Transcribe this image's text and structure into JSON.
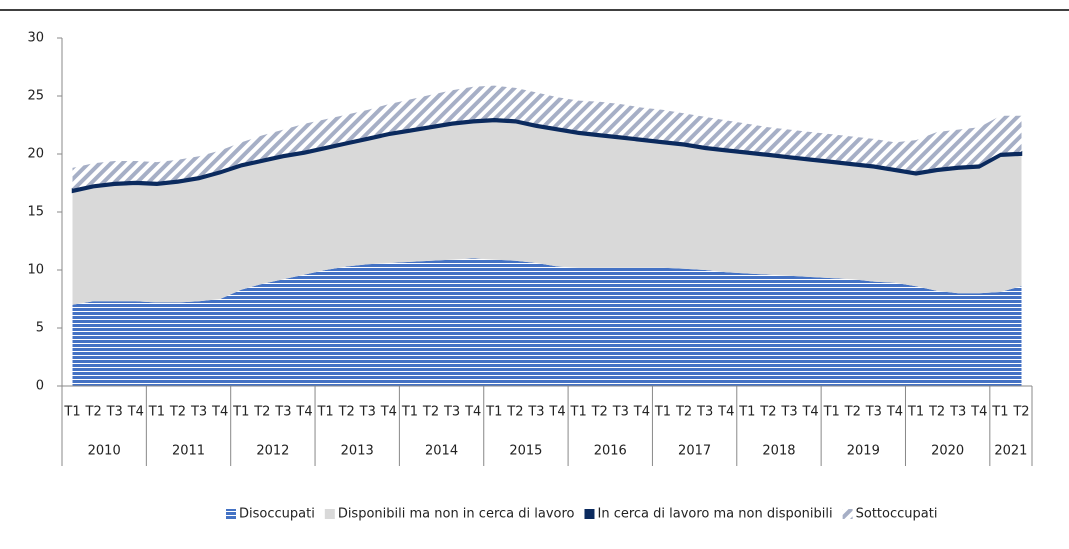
{
  "chart_data": {
    "type": "stacked_area",
    "categories": [
      "T1",
      "T2",
      "T3",
      "T4",
      "T1",
      "T2",
      "T3",
      "T4",
      "T1",
      "T2",
      "T3",
      "T4",
      "T1",
      "T2",
      "T3",
      "T4",
      "T1",
      "T2",
      "T3",
      "T4",
      "T1",
      "T2",
      "T3",
      "T4",
      "T1",
      "T2",
      "T3",
      "T4",
      "T1",
      "T2",
      "T3",
      "T4",
      "T1",
      "T2",
      "T3",
      "T4",
      "T1",
      "T2",
      "T3",
      "T4",
      "T1",
      "T2",
      "T3",
      "T4",
      "T1",
      "T2"
    ],
    "years": [
      "2010",
      "2011",
      "2012",
      "2013",
      "2014",
      "2015",
      "2016",
      "2017",
      "2018",
      "2019",
      "2020",
      "2021"
    ],
    "series": [
      {
        "name": "Disoccupati",
        "color": "#4472c4",
        "pattern": "stripes",
        "values": [
          7.0,
          7.3,
          7.3,
          7.3,
          7.2,
          7.2,
          7.3,
          7.5,
          8.3,
          8.8,
          9.2,
          9.6,
          10.0,
          10.3,
          10.5,
          10.6,
          10.7,
          10.8,
          10.9,
          11.0,
          10.9,
          10.8,
          10.6,
          10.3,
          10.2,
          10.2,
          10.2,
          10.2,
          10.2,
          10.1,
          10.0,
          9.8,
          9.7,
          9.6,
          9.5,
          9.4,
          9.3,
          9.2,
          9.0,
          8.9,
          8.6,
          8.2,
          8.0,
          8.0,
          8.1,
          8.6
        ]
      },
      {
        "name": "Disponibili ma non in cerca di lavoro",
        "color": "#d9d9d9",
        "pattern": "solid",
        "values": [
          9.7,
          9.8,
          10.0,
          10.1,
          10.1,
          10.3,
          10.5,
          10.8,
          10.6,
          10.5,
          10.5,
          10.4,
          10.4,
          10.5,
          10.7,
          11.0,
          11.2,
          11.4,
          11.6,
          11.7,
          11.9,
          11.9,
          11.7,
          11.7,
          11.5,
          11.3,
          11.1,
          10.9,
          10.7,
          10.6,
          10.4,
          10.4,
          10.3,
          10.2,
          10.1,
          10.0,
          9.9,
          9.8,
          9.8,
          9.6,
          9.6,
          10.3,
          10.7,
          10.8,
          11.7,
          11.3
        ]
      },
      {
        "name": "In cerca di lavoro ma non disponibili",
        "color": "#0b2a5e",
        "pattern": "solid",
        "values": [
          0.3,
          0.3,
          0.3,
          0.3,
          0.3,
          0.3,
          0.3,
          0.3,
          0.3,
          0.3,
          0.3,
          0.3,
          0.3,
          0.3,
          0.3,
          0.3,
          0.3,
          0.3,
          0.3,
          0.3,
          0.3,
          0.3,
          0.3,
          0.3,
          0.3,
          0.3,
          0.3,
          0.3,
          0.3,
          0.3,
          0.3,
          0.3,
          0.3,
          0.3,
          0.3,
          0.3,
          0.3,
          0.3,
          0.3,
          0.3,
          0.3,
          0.3,
          0.3,
          0.3,
          0.3,
          0.3
        ]
      },
      {
        "name": "Sottoccupati",
        "color": "#a6afc6",
        "pattern": "hatch",
        "values": [
          1.8,
          1.8,
          1.8,
          1.7,
          1.7,
          1.7,
          1.7,
          1.7,
          1.8,
          2.0,
          2.1,
          2.3,
          2.3,
          2.3,
          2.3,
          2.4,
          2.5,
          2.6,
          2.7,
          2.8,
          2.8,
          2.7,
          2.7,
          2.6,
          2.6,
          2.7,
          2.7,
          2.6,
          2.6,
          2.5,
          2.5,
          2.4,
          2.3,
          2.2,
          2.2,
          2.2,
          2.2,
          2.2,
          2.2,
          2.2,
          2.7,
          3.1,
          3.1,
          3.2,
          3.2,
          3.1
        ]
      }
    ],
    "ylim": [
      0,
      30
    ],
    "yticks": [
      0,
      5,
      10,
      15,
      20,
      25,
      30
    ],
    "grid": false,
    "legend": "bottom"
  }
}
